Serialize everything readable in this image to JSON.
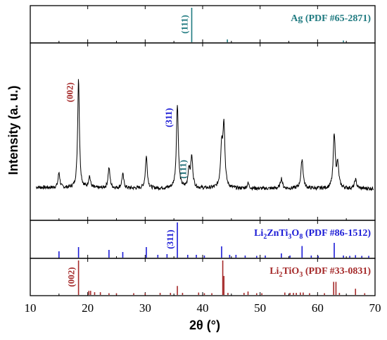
{
  "chart_data": {
    "type": "line",
    "xlabel": "2θ (°)",
    "ylabel": "Intensity (a. u.)",
    "xlim": [
      10,
      70
    ],
    "x_ticks": [
      10,
      20,
      30,
      40,
      50,
      60,
      70
    ],
    "grid": false,
    "xrd_pattern": {
      "peaks": [
        {
          "x": 15.0,
          "h": 0.12,
          "w": 0.18
        },
        {
          "x": 18.4,
          "h": 0.86,
          "w": 0.18
        },
        {
          "x": 20.3,
          "h": 0.09,
          "w": 0.2
        },
        {
          "x": 23.7,
          "h": 0.16,
          "w": 0.2
        },
        {
          "x": 26.1,
          "h": 0.11,
          "w": 0.2
        },
        {
          "x": 30.2,
          "h": 0.25,
          "w": 0.2
        },
        {
          "x": 35.6,
          "h": 0.66,
          "w": 0.2
        },
        {
          "x": 37.6,
          "h": 0.14,
          "w": 0.18
        },
        {
          "x": 38.1,
          "h": 0.24,
          "w": 0.22
        },
        {
          "x": 43.3,
          "h": 0.31,
          "w": 0.22
        },
        {
          "x": 43.7,
          "h": 0.48,
          "w": 0.2
        },
        {
          "x": 47.9,
          "h": 0.04,
          "w": 0.2
        },
        {
          "x": 53.7,
          "h": 0.08,
          "w": 0.2
        },
        {
          "x": 57.3,
          "h": 0.23,
          "w": 0.22
        },
        {
          "x": 62.9,
          "h": 0.42,
          "w": 0.2
        },
        {
          "x": 63.5,
          "h": 0.18,
          "w": 0.22
        },
        {
          "x": 66.6,
          "h": 0.07,
          "w": 0.2
        }
      ],
      "annotations": [
        {
          "text": "(002)",
          "x": 18.4,
          "color": "#a52a2a"
        },
        {
          "text": "(311)",
          "x": 35.6,
          "color": "#1c1cd6"
        },
        {
          "text": "(111)",
          "x": 38.1,
          "color": "#1f6f78"
        }
      ]
    },
    "reference_patterns": [
      {
        "label": "Ag (PDF #65-2871)",
        "color": "#1f7a80",
        "peak_label": "(111)",
        "sticks": [
          [
            38.1,
            1.0
          ],
          [
            44.3,
            0.08
          ],
          [
            64.5,
            0.05
          ]
        ]
      },
      {
        "label_parts": [
          "Li",
          "2",
          "ZnTi",
          "3",
          "O",
          "8",
          " (PDF #86-1512)"
        ],
        "color": "#1c1cd6",
        "peak_label": "(311)",
        "sticks": [
          [
            15.0,
            0.18
          ],
          [
            18.4,
            0.3
          ],
          [
            23.7,
            0.22
          ],
          [
            26.1,
            0.16
          ],
          [
            30.2,
            0.3
          ],
          [
            32.2,
            0.08
          ],
          [
            33.8,
            0.1
          ],
          [
            35.6,
            1.0
          ],
          [
            37.4,
            0.08
          ],
          [
            38.9,
            0.08
          ],
          [
            40.3,
            0.06
          ],
          [
            43.3,
            0.32
          ],
          [
            44.7,
            0.08
          ],
          [
            45.8,
            0.08
          ],
          [
            47.4,
            0.06
          ],
          [
            49.4,
            0.05
          ],
          [
            50.9,
            0.06
          ],
          [
            53.7,
            0.12
          ],
          [
            55.2,
            0.06
          ],
          [
            57.3,
            0.33
          ],
          [
            58.9,
            0.06
          ],
          [
            60.1,
            0.05
          ],
          [
            62.9,
            0.42
          ],
          [
            64.5,
            0.06
          ],
          [
            65.6,
            0.05
          ],
          [
            66.6,
            0.07
          ],
          [
            67.7,
            0.05
          ],
          [
            68.9,
            0.05
          ]
        ]
      },
      {
        "label_parts": [
          "Li",
          "2",
          "TiO",
          "3",
          " (PDF #33-0831)"
        ],
        "color": "#a52a2a",
        "peak_label": "(002)",
        "sticks": [
          [
            18.4,
            1.0
          ],
          [
            20.2,
            0.12
          ],
          [
            20.5,
            0.12
          ],
          [
            21.2,
            0.08
          ],
          [
            22.2,
            0.08
          ],
          [
            23.7,
            0.05
          ],
          [
            25.0,
            0.05
          ],
          [
            28.0,
            0.05
          ],
          [
            30.0,
            0.05
          ],
          [
            32.6,
            0.06
          ],
          [
            34.4,
            0.06
          ],
          [
            35.6,
            0.26
          ],
          [
            36.5,
            0.06
          ],
          [
            39.3,
            0.07
          ],
          [
            40.3,
            0.05
          ],
          [
            41.6,
            0.05
          ],
          [
            43.5,
            1.0
          ],
          [
            43.7,
            0.55
          ],
          [
            44.4,
            0.06
          ],
          [
            47.2,
            0.06
          ],
          [
            47.9,
            0.1
          ],
          [
            49.4,
            0.05
          ],
          [
            50.3,
            0.05
          ],
          [
            54.3,
            0.07
          ],
          [
            55.2,
            0.06
          ],
          [
            55.8,
            0.06
          ],
          [
            56.3,
            0.06
          ],
          [
            57.0,
            0.07
          ],
          [
            57.5,
            0.07
          ],
          [
            58.6,
            0.05
          ],
          [
            61.2,
            0.05
          ],
          [
            62.8,
            0.38
          ],
          [
            63.2,
            0.38
          ],
          [
            63.8,
            0.06
          ],
          [
            66.6,
            0.18
          ],
          [
            68.2,
            0.05
          ]
        ]
      }
    ]
  }
}
